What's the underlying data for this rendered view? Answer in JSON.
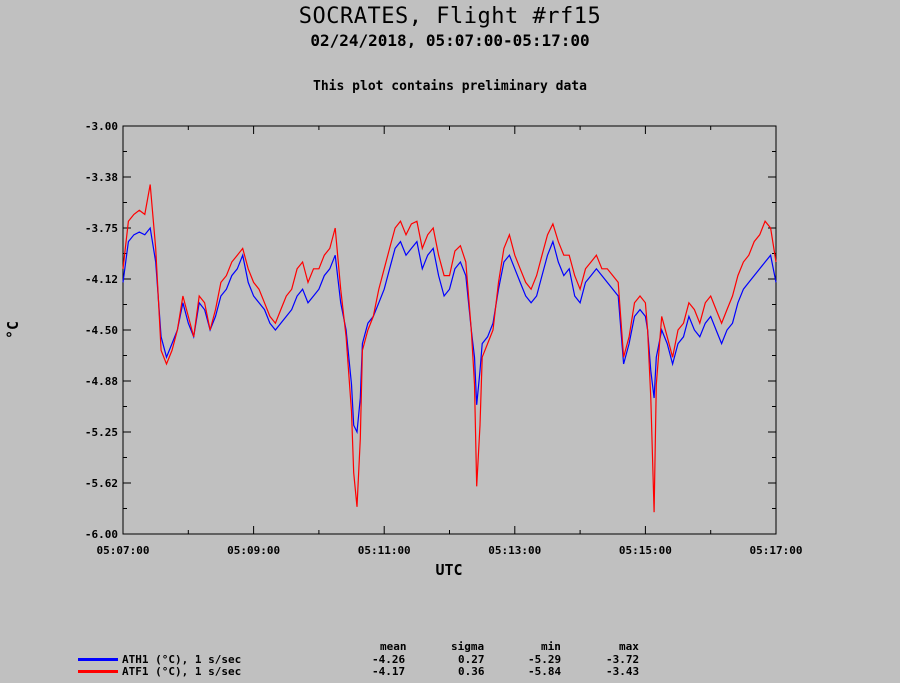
{
  "header": {
    "title": "SOCRATES, Flight #rf15",
    "subtitle": "02/24/2018, 05:07:00-05:17:00",
    "note": "This plot contains preliminary data"
  },
  "stats": {
    "headers": [
      "mean",
      "sigma",
      "min",
      "max"
    ],
    "rows": [
      {
        "label": "ATH1 (°C), 1 s/sec",
        "color": "#0000ff",
        "mean": "-4.26",
        "sigma": "0.27",
        "min": "-5.29",
        "max": "-3.72"
      },
      {
        "label": "ATF1 (°C), 1 s/sec",
        "color": "#ff0000",
        "mean": "-4.17",
        "sigma": "0.36",
        "min": "-5.84",
        "max": "-3.43"
      }
    ]
  },
  "chart_data": {
    "type": "line",
    "xlabel": "UTC",
    "ylabel": "°C",
    "xlim": [
      0,
      600
    ],
    "ylim": [
      -6.0,
      -3.0
    ],
    "x_tick_labels": [
      "05:07:00",
      "05:09:00",
      "05:11:00",
      "05:13:00",
      "05:15:00",
      "05:17:00"
    ],
    "x_tick_values": [
      0,
      120,
      240,
      360,
      480,
      600
    ],
    "y_tick_labels": [
      "-3.00",
      "-3.38",
      "-3.75",
      "-4.12",
      "-4.50",
      "-4.88",
      "-5.25",
      "-5.62",
      "-6.00"
    ],
    "y_tick_values": [
      -3.0,
      -3.375,
      -3.75,
      -4.125,
      -4.5,
      -4.875,
      -5.25,
      -5.625,
      -6.0
    ],
    "x_unit": "seconds after 05:07:00 UTC",
    "series": [
      {
        "name": "ATH1 (°C), 1 s/sec",
        "color": "#0000ff",
        "x": [
          0,
          5,
          10,
          15,
          20,
          25,
          30,
          35,
          40,
          45,
          50,
          55,
          60,
          65,
          70,
          75,
          80,
          85,
          90,
          95,
          100,
          105,
          110,
          115,
          120,
          125,
          130,
          135,
          140,
          145,
          150,
          155,
          160,
          165,
          170,
          175,
          180,
          185,
          190,
          195,
          200,
          205,
          210,
          212,
          215,
          218,
          220,
          225,
          230,
          235,
          240,
          245,
          250,
          255,
          260,
          265,
          270,
          275,
          280,
          285,
          290,
          295,
          300,
          305,
          310,
          315,
          320,
          323,
          325,
          328,
          330,
          335,
          340,
          345,
          350,
          355,
          360,
          365,
          370,
          375,
          380,
          385,
          390,
          395,
          400,
          405,
          410,
          415,
          420,
          425,
          430,
          435,
          440,
          445,
          450,
          455,
          460,
          465,
          470,
          475,
          480,
          482,
          485,
          488,
          490,
          495,
          500,
          505,
          510,
          515,
          520,
          525,
          530,
          535,
          540,
          545,
          550,
          555,
          560,
          565,
          570,
          575,
          580,
          585,
          590,
          595,
          600
        ],
        "y": [
          -4.15,
          -3.85,
          -3.8,
          -3.78,
          -3.8,
          -3.75,
          -4.0,
          -4.55,
          -4.7,
          -4.6,
          -4.5,
          -4.3,
          -4.45,
          -4.55,
          -4.3,
          -4.35,
          -4.5,
          -4.4,
          -4.25,
          -4.2,
          -4.1,
          -4.05,
          -3.95,
          -4.15,
          -4.25,
          -4.3,
          -4.35,
          -4.45,
          -4.5,
          -4.45,
          -4.4,
          -4.35,
          -4.25,
          -4.2,
          -4.3,
          -4.25,
          -4.2,
          -4.1,
          -4.05,
          -3.95,
          -4.3,
          -4.5,
          -4.9,
          -5.2,
          -5.25,
          -5.0,
          -4.6,
          -4.45,
          -4.4,
          -4.3,
          -4.2,
          -4.05,
          -3.9,
          -3.85,
          -3.95,
          -3.9,
          -3.85,
          -4.05,
          -3.95,
          -3.9,
          -4.1,
          -4.25,
          -4.2,
          -4.05,
          -4.0,
          -4.1,
          -4.5,
          -4.7,
          -5.05,
          -4.8,
          -4.6,
          -4.55,
          -4.45,
          -4.2,
          -4.0,
          -3.95,
          -4.05,
          -4.15,
          -4.25,
          -4.3,
          -4.25,
          -4.1,
          -3.95,
          -3.85,
          -4.0,
          -4.1,
          -4.05,
          -4.25,
          -4.3,
          -4.15,
          -4.1,
          -4.05,
          -4.1,
          -4.15,
          -4.2,
          -4.25,
          -4.75,
          -4.6,
          -4.4,
          -4.35,
          -4.4,
          -4.5,
          -4.8,
          -5.0,
          -4.7,
          -4.5,
          -4.6,
          -4.75,
          -4.6,
          -4.55,
          -4.4,
          -4.5,
          -4.55,
          -4.45,
          -4.4,
          -4.5,
          -4.6,
          -4.5,
          -4.45,
          -4.3,
          -4.2,
          -4.15,
          -4.1,
          -4.05,
          -4.0,
          -3.95,
          -4.15
        ]
      },
      {
        "name": "ATF1 (°C), 1 s/sec",
        "color": "#ff0000",
        "x": [
          0,
          5,
          10,
          15,
          20,
          25,
          30,
          35,
          40,
          45,
          50,
          55,
          60,
          65,
          70,
          75,
          80,
          85,
          90,
          95,
          100,
          105,
          110,
          115,
          120,
          125,
          130,
          135,
          140,
          145,
          150,
          155,
          160,
          165,
          170,
          175,
          180,
          185,
          190,
          195,
          200,
          205,
          210,
          212,
          215,
          218,
          220,
          225,
          230,
          235,
          240,
          245,
          250,
          255,
          260,
          265,
          270,
          275,
          280,
          285,
          290,
          295,
          300,
          305,
          310,
          315,
          320,
          323,
          325,
          328,
          330,
          335,
          340,
          345,
          350,
          355,
          360,
          365,
          370,
          375,
          380,
          385,
          390,
          395,
          400,
          405,
          410,
          415,
          420,
          425,
          430,
          435,
          440,
          445,
          450,
          455,
          460,
          465,
          470,
          475,
          480,
          482,
          485,
          488,
          490,
          495,
          500,
          505,
          510,
          515,
          520,
          525,
          530,
          535,
          540,
          545,
          550,
          555,
          560,
          565,
          570,
          575,
          580,
          585,
          590,
          595,
          600
        ],
        "y": [
          -4.05,
          -3.7,
          -3.65,
          -3.62,
          -3.65,
          -3.43,
          -3.9,
          -4.65,
          -4.75,
          -4.65,
          -4.5,
          -4.25,
          -4.4,
          -4.55,
          -4.25,
          -4.3,
          -4.5,
          -4.35,
          -4.15,
          -4.1,
          -4.0,
          -3.95,
          -3.9,
          -4.05,
          -4.15,
          -4.2,
          -4.3,
          -4.4,
          -4.45,
          -4.35,
          -4.25,
          -4.2,
          -4.05,
          -4.0,
          -4.15,
          -4.05,
          -4.05,
          -3.95,
          -3.9,
          -3.75,
          -4.2,
          -4.55,
          -5.1,
          -5.55,
          -5.8,
          -5.3,
          -4.65,
          -4.5,
          -4.4,
          -4.2,
          -4.05,
          -3.9,
          -3.75,
          -3.7,
          -3.8,
          -3.72,
          -3.7,
          -3.9,
          -3.8,
          -3.75,
          -3.95,
          -4.1,
          -4.1,
          -3.92,
          -3.88,
          -4.0,
          -4.5,
          -4.9,
          -5.65,
          -5.2,
          -4.7,
          -4.6,
          -4.5,
          -4.15,
          -3.9,
          -3.8,
          -3.95,
          -4.05,
          -4.15,
          -4.2,
          -4.1,
          -3.95,
          -3.8,
          -3.72,
          -3.85,
          -3.95,
          -3.95,
          -4.1,
          -4.2,
          -4.05,
          -4.0,
          -3.95,
          -4.05,
          -4.05,
          -4.1,
          -4.15,
          -4.7,
          -4.55,
          -4.3,
          -4.25,
          -4.3,
          -4.5,
          -5.0,
          -5.84,
          -4.9,
          -4.4,
          -4.55,
          -4.7,
          -4.5,
          -4.45,
          -4.3,
          -4.35,
          -4.45,
          -4.3,
          -4.25,
          -4.35,
          -4.45,
          -4.35,
          -4.25,
          -4.1,
          -4.0,
          -3.95,
          -3.85,
          -3.8,
          -3.7,
          -3.75,
          -4.0
        ]
      }
    ]
  }
}
